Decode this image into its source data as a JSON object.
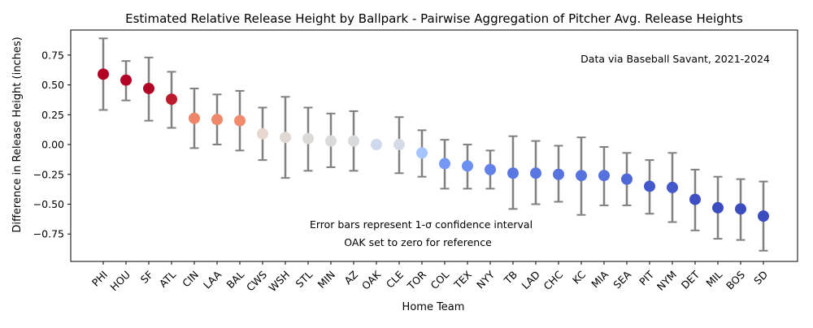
{
  "chart_data": {
    "type": "scatter",
    "title": "Estimated Relative Release Height by Ballpark - Pairwise Aggregation of Pitcher Avg. Release Heights",
    "xlabel": "Home Team",
    "ylabel": "Difference in Release Height (inches)",
    "ylim": [
      -0.98,
      0.96
    ],
    "yticks": [
      "0.75",
      "0.50",
      "0.25",
      "0.00",
      "−0.25",
      "−0.50",
      "−0.75"
    ],
    "ytick_values": [
      0.75,
      0.5,
      0.25,
      0.0,
      -0.25,
      -0.5,
      -0.75
    ],
    "grid": false,
    "annotations": {
      "source": "Data via Baseball Savant, 2021-2024",
      "error_bar_note": "Error bars represent 1-σ confidence interval",
      "reference_note": "OAK set to zero for reference"
    },
    "points": [
      {
        "team": "PHI",
        "value": 0.59,
        "lower": 0.29,
        "upper": 0.89,
        "color": "#b40426"
      },
      {
        "team": "HOU",
        "value": 0.54,
        "lower": 0.37,
        "upper": 0.7,
        "color": "#b40426"
      },
      {
        "team": "SF",
        "value": 0.47,
        "lower": 0.2,
        "upper": 0.73,
        "color": "#b40426"
      },
      {
        "team": "ATL",
        "value": 0.38,
        "lower": 0.14,
        "upper": 0.61,
        "color": "#bb1b2c"
      },
      {
        "team": "CIN",
        "value": 0.22,
        "lower": -0.03,
        "upper": 0.47,
        "color": "#ee8468"
      },
      {
        "team": "LAA",
        "value": 0.21,
        "lower": 0.0,
        "upper": 0.42,
        "color": "#ef886b"
      },
      {
        "team": "BAL",
        "value": 0.2,
        "lower": -0.05,
        "upper": 0.45,
        "color": "#f08b6e"
      },
      {
        "team": "CWS",
        "value": 0.09,
        "lower": -0.13,
        "upper": 0.31,
        "color": "#e7d7ce"
      },
      {
        "team": "WSH",
        "value": 0.06,
        "lower": -0.28,
        "upper": 0.4,
        "color": "#e0d8d3"
      },
      {
        "team": "STL",
        "value": 0.05,
        "lower": -0.22,
        "upper": 0.31,
        "color": "#dcdad8"
      },
      {
        "team": "MIN",
        "value": 0.03,
        "lower": -0.19,
        "upper": 0.26,
        "color": "#dadadb"
      },
      {
        "team": "AZ",
        "value": 0.03,
        "lower": -0.22,
        "upper": 0.28,
        "color": "#d9dadc"
      },
      {
        "team": "OAK",
        "value": 0.0,
        "lower": 0.0,
        "upper": 0.0,
        "color": "#cdd9ec"
      },
      {
        "team": "CLE",
        "value": 0.0,
        "lower": -0.24,
        "upper": 0.23,
        "color": "#d4dbe6"
      },
      {
        "team": "TOR",
        "value": -0.07,
        "lower": -0.27,
        "upper": 0.12,
        "color": "#a6c4fe"
      },
      {
        "team": "COL",
        "value": -0.16,
        "lower": -0.37,
        "upper": 0.04,
        "color": "#7597f6"
      },
      {
        "team": "TEX",
        "value": -0.18,
        "lower": -0.37,
        "upper": 0.0,
        "color": "#6c8ff1"
      },
      {
        "team": "NYY",
        "value": -0.21,
        "lower": -0.37,
        "upper": -0.05,
        "color": "#6282ea"
      },
      {
        "team": "TB",
        "value": -0.24,
        "lower": -0.54,
        "upper": 0.07,
        "color": "#5977e3"
      },
      {
        "team": "LAD",
        "value": -0.24,
        "lower": -0.5,
        "upper": 0.03,
        "color": "#5977e3"
      },
      {
        "team": "CHC",
        "value": -0.25,
        "lower": -0.48,
        "upper": -0.01,
        "color": "#5673e0"
      },
      {
        "team": "KC",
        "value": -0.26,
        "lower": -0.59,
        "upper": 0.06,
        "color": "#5572df"
      },
      {
        "team": "MIA",
        "value": -0.26,
        "lower": -0.51,
        "upper": -0.02,
        "color": "#5572df"
      },
      {
        "team": "SEA",
        "value": -0.29,
        "lower": -0.51,
        "upper": -0.07,
        "color": "#4e68d8"
      },
      {
        "team": "PIT",
        "value": -0.35,
        "lower": -0.58,
        "upper": -0.13,
        "color": "#445acc"
      },
      {
        "team": "NYM",
        "value": -0.36,
        "lower": -0.65,
        "upper": -0.07,
        "color": "#4358cb"
      },
      {
        "team": "DET",
        "value": -0.46,
        "lower": -0.72,
        "upper": -0.21,
        "color": "#3d4fc2"
      },
      {
        "team": "MIL",
        "value": -0.53,
        "lower": -0.79,
        "upper": -0.27,
        "color": "#3b4cc0"
      },
      {
        "team": "BOS",
        "value": -0.54,
        "lower": -0.8,
        "upper": -0.29,
        "color": "#3b4cc0"
      },
      {
        "team": "SD",
        "value": -0.6,
        "lower": -0.89,
        "upper": -0.31,
        "color": "#3b4cc0"
      }
    ]
  }
}
